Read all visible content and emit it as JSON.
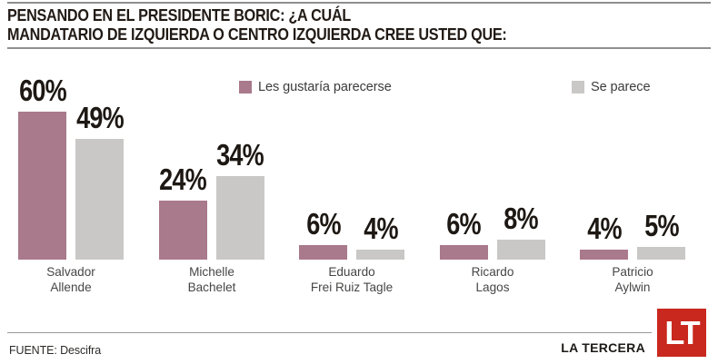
{
  "header": {
    "title_line1": "PENSANDO EN EL PRESIDENTE BORIC: ¿A CUÁL",
    "title_line2": "MANDATARIO DE IZQUIERDA O CENTRO IZQUIERDA CREE USTED QUE:"
  },
  "legend": [
    {
      "label": "Les gustaría parecerse",
      "color": "#a9798c"
    },
    {
      "label": "Se parece",
      "color": "#c9c8c6"
    }
  ],
  "chart_data": {
    "type": "bar",
    "title": "PENSANDO EN EL PRESIDENTE BORIC: ¿A CUÁL MANDATARIO DE IZQUIERDA O CENTRO IZQUIERDA CREE USTED QUE:",
    "categories": [
      "Salvador Allende",
      "Michelle Bachelet",
      "Eduardo Frei Ruiz Tagle",
      "Ricardo Lagos",
      "Patricio Aylwin"
    ],
    "category_lines": [
      "Salvador\nAllende",
      "Michelle\nBachelet",
      "Eduardo\nFrei Ruiz Tagle",
      "Ricardo\nLagos",
      "Patricio\nAylwin"
    ],
    "series": [
      {
        "name": "Les gustaría parecerse",
        "color": "#a9798c",
        "values": [
          60,
          24,
          6,
          6,
          4
        ]
      },
      {
        "name": "Se parece",
        "color": "#c9c8c6",
        "values": [
          49,
          34,
          4,
          8,
          5
        ]
      }
    ],
    "value_suffix": "%",
    "ylim": [
      0,
      65
    ],
    "grid": false,
    "legend_position": "top",
    "xlabel": "",
    "ylabel": ""
  },
  "footer": {
    "source": "FUENTE: Descifra",
    "brand": "LA TERCERA",
    "logo_text": "LT",
    "logo_color": "#c8281e"
  }
}
